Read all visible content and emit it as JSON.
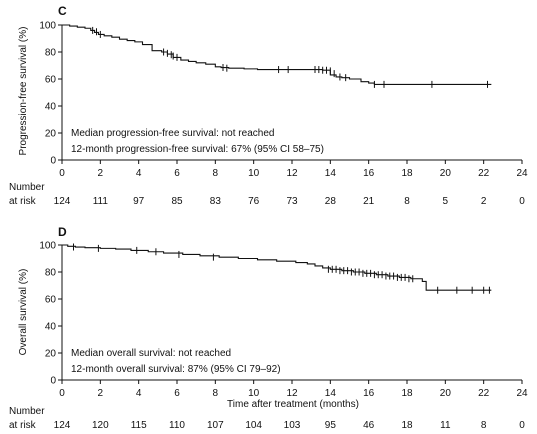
{
  "chart_data": [
    {
      "type": "line",
      "panel_label": "C",
      "ylabel": "Progression-free survival (%)",
      "xlabel": "",
      "xlim": [
        0,
        24
      ],
      "ylim": [
        0,
        100
      ],
      "x_ticks": [
        "0",
        "2",
        "4",
        "6",
        "8",
        "10",
        "12",
        "14",
        "16",
        "18",
        "20",
        "22",
        "24"
      ],
      "y_ticks": [
        "0",
        "20",
        "40",
        "60",
        "80",
        "100"
      ],
      "annotations": [
        "Median progression-free survival: not reached",
        "12-month progression-free survival: 67% (95% CI 58–75)"
      ],
      "number_at_risk_label": [
        "Number",
        "at risk"
      ],
      "number_at_risk": [
        "124",
        "111",
        "97",
        "85",
        "83",
        "76",
        "73",
        "28",
        "21",
        "8",
        "5",
        "2",
        "0"
      ],
      "series": [
        {
          "step_x": [
            0,
            0.4,
            0.8,
            1.2,
            1.5,
            1.7,
            1.9,
            2.2,
            2.6,
            3.0,
            3.4,
            3.8,
            4.2,
            4.7,
            5.2,
            5.5,
            5.8,
            6.2,
            6.6,
            7.0,
            7.5,
            8.0,
            8.3,
            8.7,
            9.5,
            10.2,
            11.0,
            11.8,
            13.0,
            13.6,
            14.0,
            14.3,
            14.6,
            15.0,
            15.6,
            16.0,
            16.3,
            16.6,
            22.4
          ],
          "step_y": [
            100,
            99.2,
            98.4,
            97.6,
            96,
            94.5,
            93,
            92,
            91,
            89.5,
            88.5,
            87.5,
            85.5,
            81,
            80,
            78.5,
            76,
            74,
            73,
            72,
            71,
            69,
            68.5,
            68,
            67.5,
            67,
            67,
            67,
            67,
            66.5,
            63,
            61.5,
            61,
            60,
            58,
            57,
            56,
            56,
            56
          ],
          "censor_x": [
            1.6,
            1.8,
            2.0,
            5.3,
            5.5,
            5.7,
            5.8,
            6.0,
            8.4,
            8.6,
            11.3,
            11.8,
            13.2,
            13.4,
            13.6,
            13.8,
            14.0,
            14.2,
            14.5,
            14.8,
            16.3,
            16.8,
            19.3,
            22.2
          ],
          "censor_y": [
            96,
            95,
            93,
            80,
            79,
            78,
            77,
            76,
            68.5,
            68,
            67,
            67,
            67,
            67,
            66.5,
            66.5,
            66,
            64,
            61.5,
            61,
            56,
            56,
            56,
            56
          ]
        }
      ]
    },
    {
      "type": "line",
      "panel_label": "D",
      "ylabel": "Overall survival (%)",
      "xlabel": "Time after treatment (months)",
      "xlim": [
        0,
        24
      ],
      "ylim": [
        0,
        100
      ],
      "x_ticks": [
        "0",
        "2",
        "4",
        "6",
        "8",
        "10",
        "12",
        "14",
        "16",
        "18",
        "20",
        "22",
        "24"
      ],
      "y_ticks": [
        "0",
        "20",
        "40",
        "60",
        "80",
        "100"
      ],
      "annotations": [
        "Median overall survival: not reached",
        "12-month overall survival: 87% (95% CI 79–92)"
      ],
      "number_at_risk_label": [
        "Number",
        "at risk"
      ],
      "number_at_risk": [
        "124",
        "120",
        "115",
        "110",
        "107",
        "104",
        "103",
        "95",
        "46",
        "18",
        "11",
        "8",
        "0"
      ],
      "series": [
        {
          "step_x": [
            0,
            0.3,
            0.7,
            1.2,
            2.0,
            2.8,
            3.6,
            4.5,
            5.3,
            6.3,
            7.2,
            8.2,
            9.2,
            10.2,
            11.2,
            12.2,
            12.8,
            13.2,
            13.6,
            14.0,
            14.6,
            15.2,
            15.8,
            16.4,
            17.0,
            17.6,
            18.2,
            18.8,
            19.0,
            22.4
          ],
          "step_y": [
            100,
            99,
            98.5,
            98,
            97.5,
            97,
            96,
            95,
            94,
            93,
            92,
            91,
            90,
            89,
            88,
            87,
            86,
            84.5,
            83,
            82,
            81,
            80,
            79,
            78,
            77,
            76,
            75,
            73,
            66.5,
            66.5
          ],
          "censor_x": [
            0.6,
            1.9,
            3.9,
            4.9,
            6.1,
            7.9,
            13.9,
            14.1,
            14.3,
            14.5,
            14.7,
            14.9,
            15.1,
            15.3,
            15.5,
            15.7,
            15.9,
            16.1,
            16.3,
            16.5,
            16.7,
            16.9,
            17.1,
            17.3,
            17.5,
            17.7,
            17.9,
            18.1,
            18.3,
            19.6,
            20.6,
            21.4,
            22.0,
            22.3
          ],
          "censor_y": [
            98.5,
            97.5,
            96,
            95,
            93,
            91,
            82,
            82,
            82,
            81,
            81,
            81,
            80,
            80,
            80,
            79,
            79,
            79,
            78,
            78,
            78,
            77,
            77,
            77,
            76,
            76,
            76,
            75,
            75,
            66.5,
            66.5,
            66.5,
            66.5,
            66.5
          ]
        }
      ]
    }
  ]
}
